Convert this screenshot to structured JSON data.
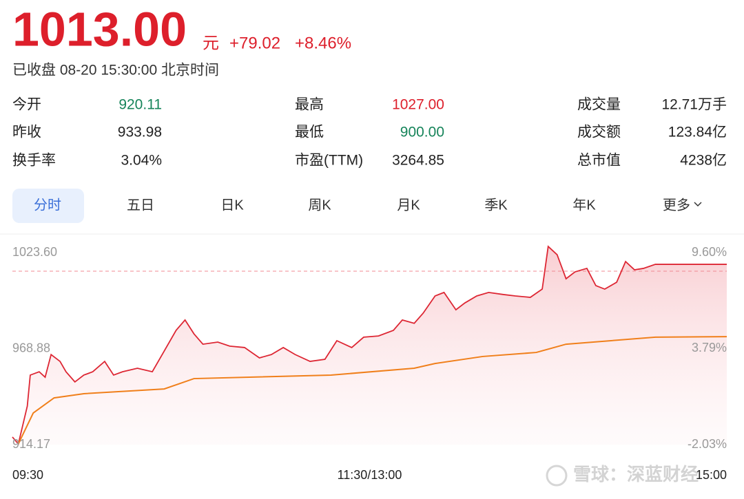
{
  "header": {
    "price": "1013.00",
    "unit": "元",
    "change": "+79.02",
    "change_pct": "+8.46%",
    "status": "已收盘 08-20 15:30:00 北京时间",
    "color": "#dd1f2b"
  },
  "stats": [
    [
      {
        "label": "今开",
        "value": "920.11",
        "color": "#16845a"
      },
      {
        "label": "最高",
        "value": "1027.00",
        "color": "#dd1f2b"
      },
      {
        "label": "成交量",
        "value": "12.71万手",
        "color": "#222222"
      }
    ],
    [
      {
        "label": "昨收",
        "value": "933.98",
        "color": "#222222"
      },
      {
        "label": "最低",
        "value": "900.00",
        "color": "#16845a"
      },
      {
        "label": "成交额",
        "value": "123.84亿",
        "color": "#222222"
      }
    ],
    [
      {
        "label": "换手率",
        "value": "3.04%",
        "color": "#222222"
      },
      {
        "label": "市盈(TTM)",
        "value": "3264.85",
        "color": "#222222"
      },
      {
        "label": "总市值",
        "value": "4238亿",
        "color": "#222222"
      }
    ]
  ],
  "tabs": {
    "items": [
      "分时",
      "五日",
      "日K",
      "周K",
      "月K",
      "季K",
      "年K",
      "更多"
    ],
    "active": 0
  },
  "chart": {
    "type": "line",
    "xlim": [
      0,
      240
    ],
    "xticks": [
      {
        "value": 0,
        "label": "09:30"
      },
      {
        "value": 120,
        "label": "11:30/13:00"
      },
      {
        "value": 240,
        "label": "15:00"
      }
    ],
    "ylim": [
      914.17,
      1023.6
    ],
    "yticks": [
      {
        "value": 1023.6,
        "label": "1023.60"
      },
      968.88,
      914.17
    ],
    "y2lim": [
      -2.03,
      9.6
    ],
    "y2ticks": [
      {
        "value": 9.6,
        "label": "9.60%"
      },
      {
        "value": 3.79,
        "label": "3.79%"
      },
      {
        "value": -2.03,
        "label": "-2.03%"
      }
    ],
    "series": [
      {
        "color": "#dd2633",
        "x": [
          0,
          2,
          5,
          6,
          9,
          11,
          13,
          16,
          18,
          21,
          24,
          27,
          31,
          34,
          37,
          42,
          47,
          51,
          55,
          58,
          61,
          64,
          69,
          73,
          78,
          83,
          87,
          91,
          95,
          100,
          105,
          109,
          114,
          118,
          123,
          128,
          131,
          135,
          138,
          142,
          145,
          149,
          152,
          156,
          160,
          165,
          169,
          174,
          178,
          180,
          183,
          186,
          189,
          193,
          196,
          199,
          203,
          206,
          209,
          212,
          216,
          240
        ],
        "values": [
          918.5,
          914.6,
          936.1,
          953.8,
          955.7,
          952.6,
          965.5,
          961.6,
          955.7,
          949.9,
          953.8,
          955.7,
          961.6,
          953.8,
          955.7,
          957.7,
          955.7,
          967.5,
          979.3,
          985.2,
          977.3,
          971.4,
          972.6,
          970.3,
          969.5,
          963.6,
          965.5,
          969.5,
          965.5,
          961.6,
          962.8,
          973.4,
          969.5,
          975.4,
          976.1,
          979.3,
          985.2,
          983.3,
          989.1,
          998.9,
          1000.9,
          991.0,
          994.9,
          998.9,
          1000.9,
          999.7,
          998.9,
          998.1,
          1002.8,
          1027.1,
          1022.4,
          1008.7,
          1012.6,
          1014.6,
          1004.8,
          1002.8,
          1006.7,
          1018.5,
          1013.8,
          1014.6,
          1016.9,
          1016.9
        ]
      },
      {
        "color": "#f07f1a",
        "x": [
          2,
          7,
          14,
          24,
          51,
          61,
          107,
          135,
          142,
          158,
          176,
          186,
          216,
          240
        ],
        "values": [
          914.6,
          932.2,
          940.8,
          943.2,
          945.9,
          951.8,
          953.8,
          957.7,
          960.4,
          964.4,
          966.7,
          971.4,
          975.4,
          975.7
        ]
      }
    ],
    "watermark": "雪球：深蓝财经"
  }
}
